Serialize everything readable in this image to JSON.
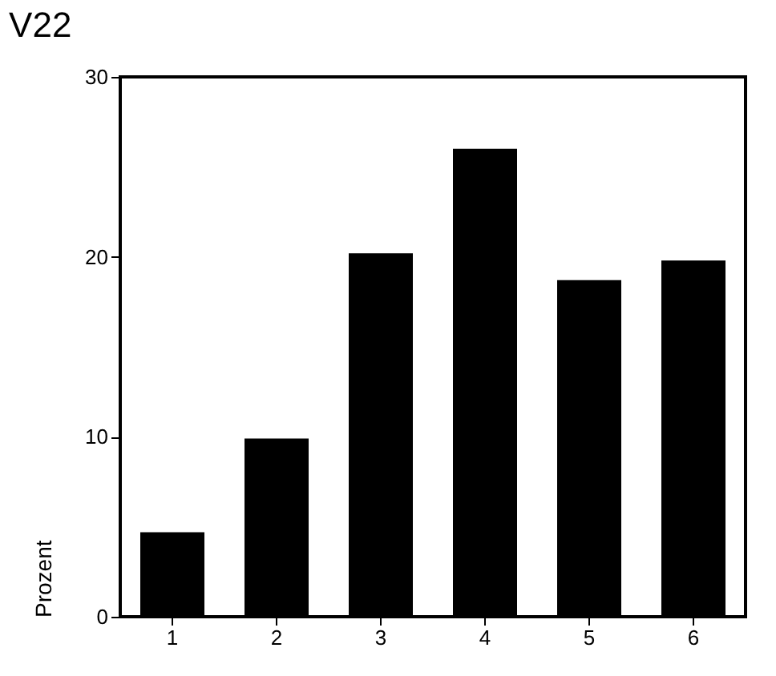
{
  "chart_data": {
    "type": "bar",
    "title": "V22",
    "ylabel": "Prozent",
    "categories": [
      "1",
      "2",
      "3",
      "4",
      "5",
      "6"
    ],
    "values": [
      4.7,
      9.9,
      20.2,
      26.0,
      18.7,
      19.8
    ],
    "color": "#000000",
    "ylim": [
      0,
      30
    ],
    "yticks": [
      0,
      10,
      20,
      30
    ],
    "grid": false
  }
}
